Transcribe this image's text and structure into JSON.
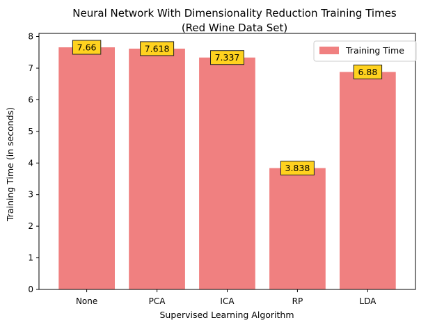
{
  "chart_data": {
    "type": "bar",
    "title": "Neural Network With Dimensionality Reduction Training Times",
    "subtitle": "(Red Wine Data Set)",
    "xlabel": "Supervised Learning Algorithm",
    "ylabel": "Training Time (in seconds)",
    "categories": [
      "None",
      "PCA",
      "ICA",
      "RP",
      "LDA"
    ],
    "series": [
      {
        "name": "Training Time",
        "values": [
          7.66,
          7.618,
          7.337,
          3.838,
          6.88
        ],
        "data_labels": [
          "7.66",
          "7.618",
          "7.337",
          "3.838",
          "6.88"
        ],
        "color": "#f08080"
      }
    ],
    "ylim": [
      0,
      8.1
    ],
    "yticks": [
      0,
      1,
      2,
      3,
      4,
      5,
      6,
      7,
      8
    ],
    "grid": false,
    "legend_position": "top-right",
    "label_box_color": "#ffd21f"
  }
}
